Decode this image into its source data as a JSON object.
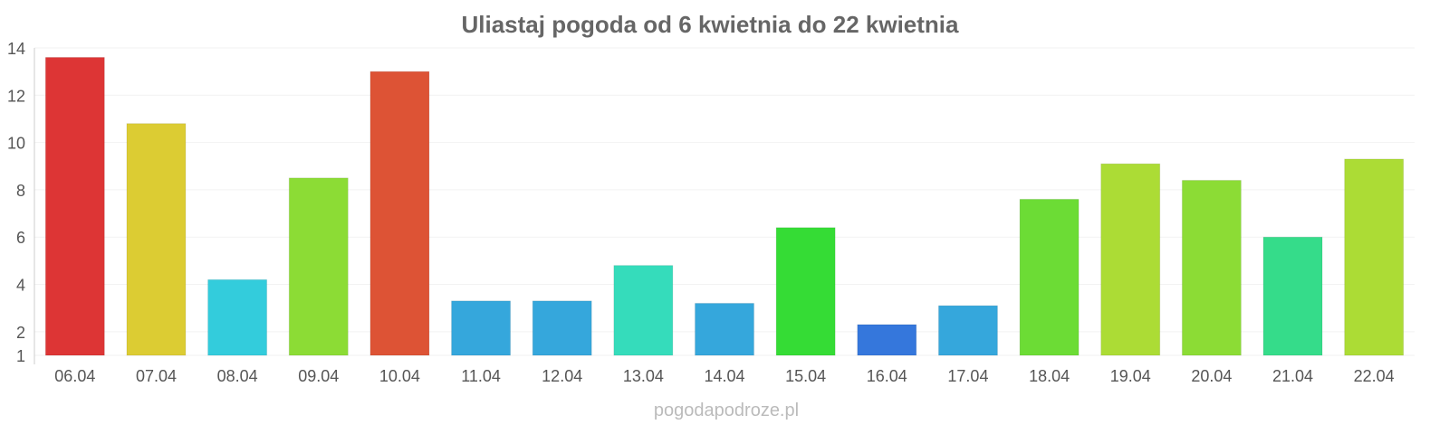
{
  "chart_data": {
    "type": "bar",
    "title": "Uliastaj pogoda od 6 kwietnia do 22 kwietnia",
    "xlabel": "",
    "ylabel": "",
    "categories": [
      "06.04",
      "07.04",
      "08.04",
      "09.04",
      "10.04",
      "11.04",
      "12.04",
      "13.04",
      "14.04",
      "15.04",
      "16.04",
      "17.04",
      "18.04",
      "19.04",
      "20.04",
      "21.04",
      "22.04"
    ],
    "values": [
      13.6,
      10.8,
      4.2,
      8.5,
      13.0,
      3.3,
      3.3,
      4.8,
      3.2,
      6.4,
      2.3,
      3.1,
      7.6,
      9.1,
      8.4,
      6.0,
      9.3
    ],
    "colors": [
      "#dd3535",
      "#dccc33",
      "#33ccdc",
      "#8cdc35",
      "#dd5335",
      "#35a7dc",
      "#35a7dc",
      "#35dcbb",
      "#35a7dc",
      "#35dc35",
      "#3577dc",
      "#35a7dc",
      "#6cdc35",
      "#acdc35",
      "#8cdc35",
      "#35dc8a",
      "#acdc35"
    ],
    "yticks": [
      1,
      2,
      4,
      6,
      8,
      10,
      12,
      14
    ],
    "ylim": [
      1,
      14
    ],
    "grid": true,
    "legend": "none"
  },
  "watermark": "pogodapodroze.pl"
}
